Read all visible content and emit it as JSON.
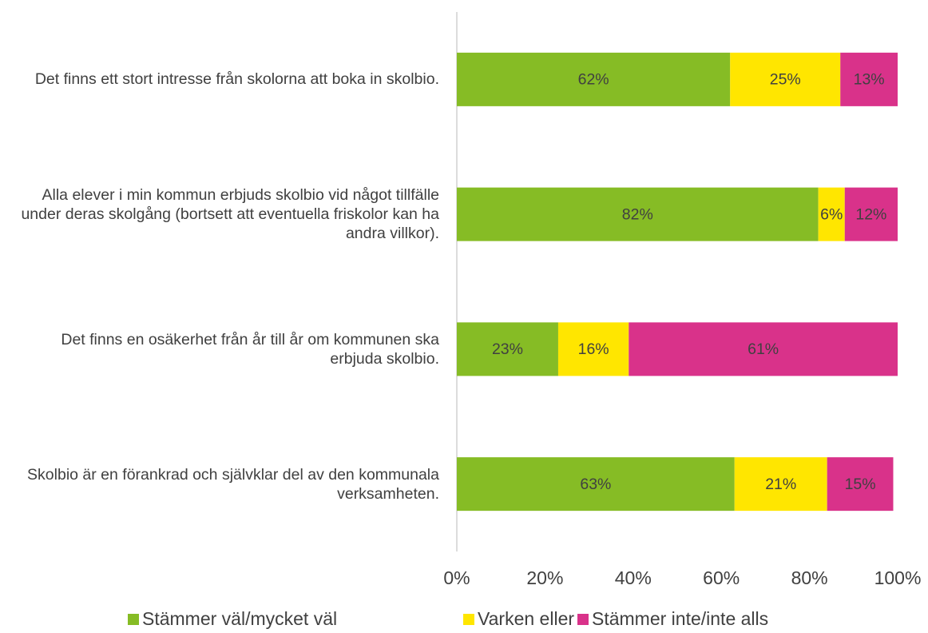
{
  "chart_data": {
    "type": "stacked_bar_horizontal",
    "categories": [
      "Det finns ett stort intresse från skolorna att boka in skolbio.",
      "Alla elever i min kommun erbjuds skolbio vid något tillfälle under deras skolgång (bortsett att eventuella friskolor kan ha andra villkor).",
      "Det finns en osäkerhet från år till år om kommunen ska erbjuda skolbio.",
      "Skolbio är en förankrad och självklar del av den kommunala verksamheten."
    ],
    "series": [
      {
        "name": "Stämmer väl/mycket väl",
        "color": "#86bc25",
        "values": [
          62,
          82,
          23,
          63
        ],
        "value_labels": [
          "62%",
          "82%",
          "23%",
          "63%"
        ]
      },
      {
        "name": "Varken eller",
        "color": "#ffe600",
        "values": [
          25,
          6,
          16,
          21
        ],
        "value_labels": [
          "25%",
          "6%",
          "16%",
          "21%"
        ]
      },
      {
        "name": "Stämmer inte/inte alls",
        "color": "#d9328a",
        "values": [
          13,
          12,
          61,
          15
        ],
        "value_labels": [
          "13%",
          "12%",
          "61%",
          "15%"
        ]
      }
    ],
    "xlim": [
      0,
      100
    ],
    "xticks": [
      {
        "value": 0,
        "label": "0%"
      },
      {
        "value": 20,
        "label": "20%"
      },
      {
        "value": 40,
        "label": "40%"
      },
      {
        "value": 60,
        "label": "60%"
      },
      {
        "value": 80,
        "label": "80%"
      },
      {
        "value": 100,
        "label": "100%"
      }
    ],
    "legend": "bottom"
  }
}
